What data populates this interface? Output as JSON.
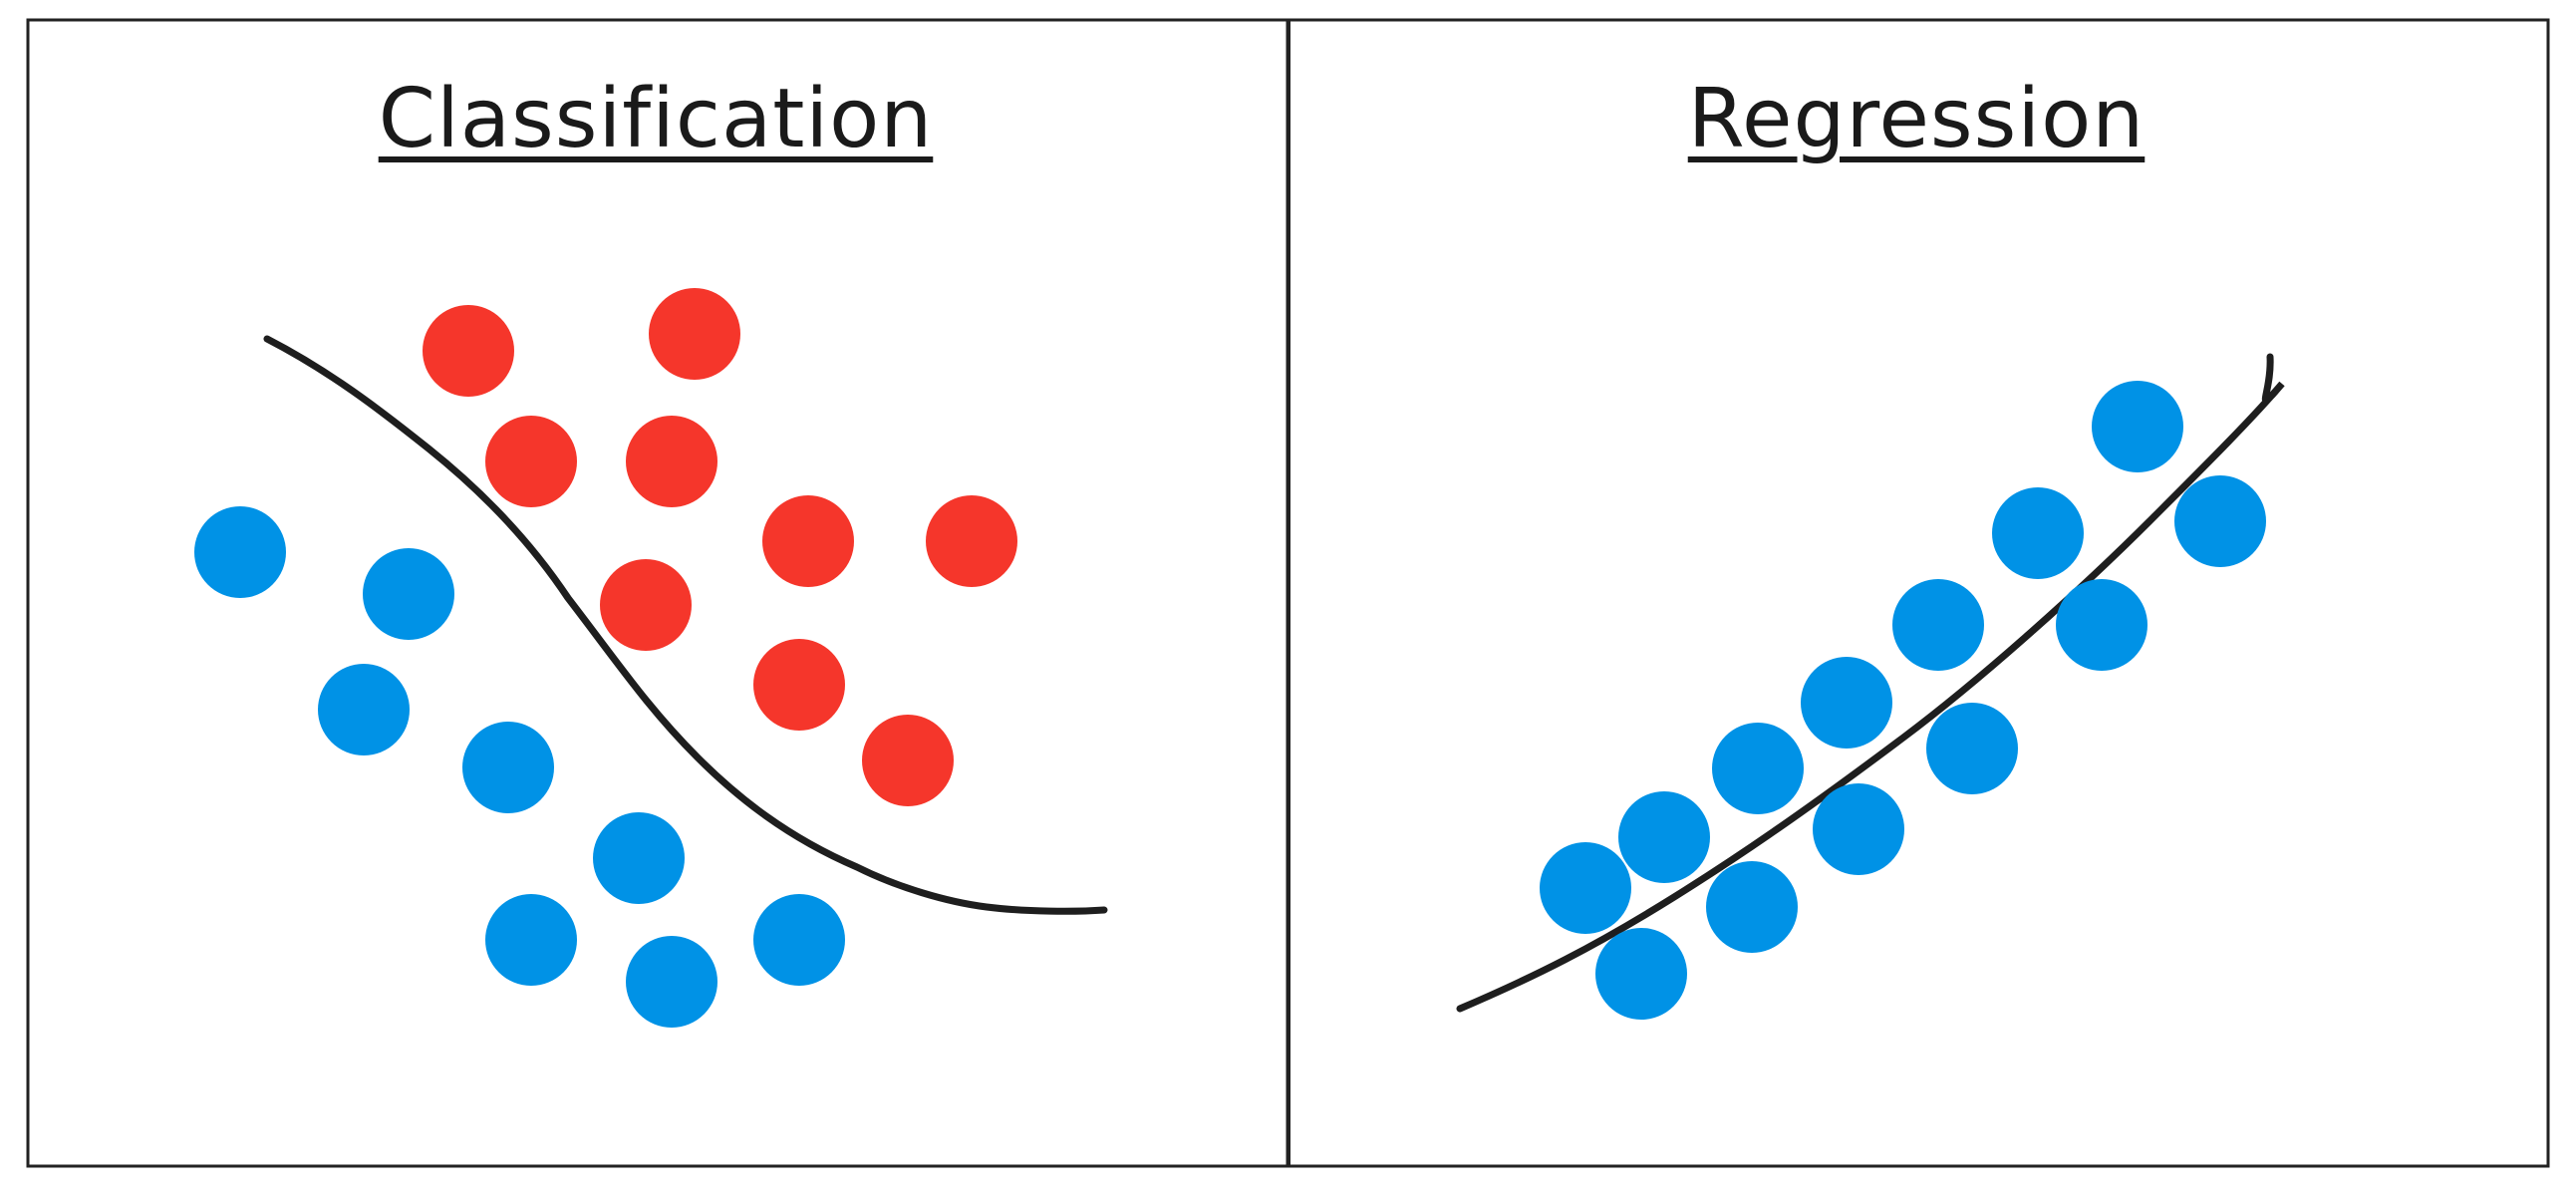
{
  "panels": {
    "left": {
      "title": "Classification"
    },
    "right": {
      "title": "Regression"
    }
  },
  "colors": {
    "class_a": "#f5362b",
    "class_b": "#0092e6",
    "curve": "#1e1e1e",
    "border": "#222222"
  }
}
